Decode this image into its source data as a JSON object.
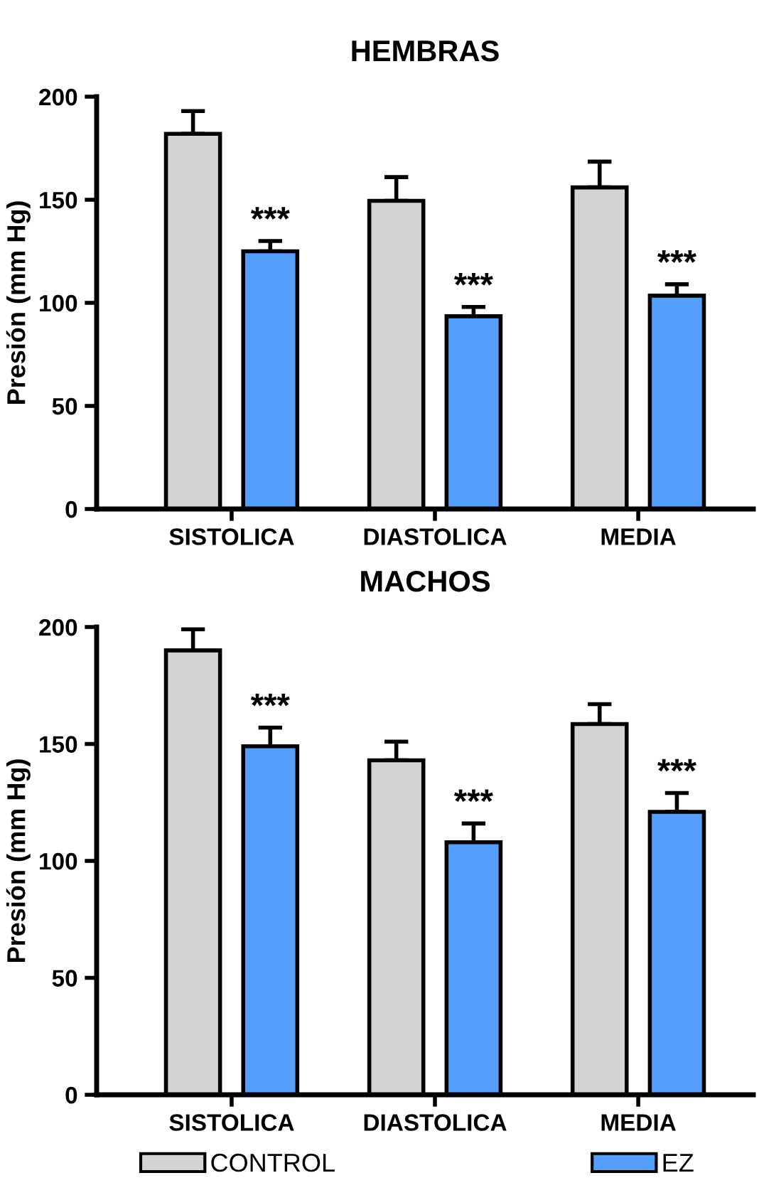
{
  "chart_data": [
    {
      "type": "bar",
      "title": "HEMBRAS",
      "ylabel": "Presión (mm Hg)",
      "categories": [
        "SISTOLICA",
        "DIASTOLICA",
        "MEDIA"
      ],
      "series": [
        {
          "color": "#d3d3d3",
          "values": [
            182,
            149.5,
            156
          ],
          "errors": [
            [
              182,
              193
            ],
            [
              149.5,
              161
            ],
            [
              156,
              168.5
            ]
          ]
        },
        {
          "color": "#559ffc",
          "values": [
            125,
            93.5,
            103.5
          ],
          "errors": [
            [
              125,
              130
            ],
            [
              93.5,
              98
            ],
            [
              103.5,
              109
            ]
          ]
        }
      ],
      "ylim": [
        0,
        200
      ],
      "yticks": [
        0,
        50,
        100,
        150,
        200
      ],
      "grid": false,
      "legend": false,
      "annotations": [
        "***",
        "***",
        "***"
      ]
    },
    {
      "type": "bar",
      "title": "MACHOS",
      "ylabel": "Presión (mm Hg)",
      "categories": [
        "SISTOLICA",
        "DIASTOLICA",
        "MEDIA"
      ],
      "series": [
        {
          "name": "CONTROL",
          "color": "#d3d3d3",
          "values": [
            190,
            143,
            158.5
          ],
          "errors": [
            [
              190,
              199
            ],
            [
              143,
              151
            ],
            [
              158.5,
              167
            ]
          ]
        },
        {
          "name": "EZ",
          "color": "#559ffc",
          "values": [
            149,
            108,
            121
          ],
          "errors": [
            [
              149,
              157
            ],
            [
              108,
              116
            ],
            [
              121,
              129
            ]
          ]
        }
      ],
      "ylim": [
        0,
        200
      ],
      "yticks": [
        0,
        50,
        100,
        150,
        200
      ],
      "grid": false,
      "legend": "bottom",
      "annotations": [
        "***",
        "***",
        "***"
      ]
    }
  ]
}
